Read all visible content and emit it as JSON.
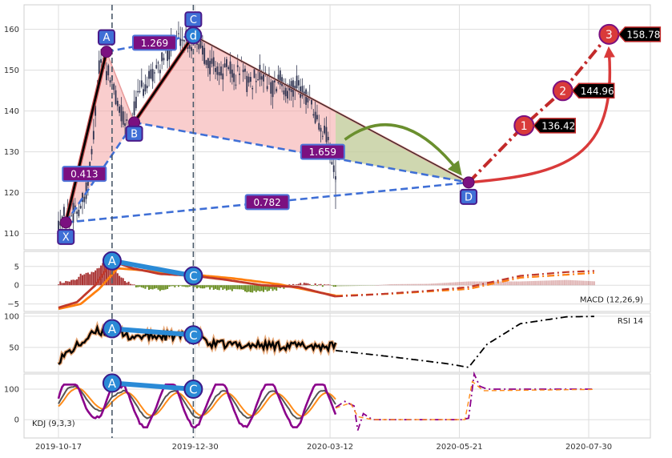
{
  "chart_data": {
    "type": "candlestick-pattern",
    "x_axis": {
      "tick_labels": [
        "2019-10-17",
        "2019-12-30",
        "2020-03-12",
        "2020-05-21",
        "2020-07-30"
      ],
      "tick_days": [
        0,
        74,
        147,
        217,
        287
      ]
    },
    "price_panel": {
      "ylim": [
        106,
        166
      ],
      "yticks": [
        110,
        120,
        130,
        140,
        150,
        160
      ],
      "price_series_days": [
        0,
        2,
        4,
        6,
        8,
        10,
        12,
        14,
        16,
        18,
        20,
        22,
        24,
        26,
        28,
        30,
        32,
        34,
        36,
        38,
        40,
        42,
        44,
        46,
        48,
        50,
        52,
        54,
        56,
        58,
        60,
        62,
        64,
        66,
        68,
        70,
        72,
        74,
        76,
        78,
        80,
        82,
        84,
        86,
        88,
        90,
        92,
        94,
        96,
        98,
        100,
        102,
        104,
        106,
        108,
        110,
        112,
        114,
        116,
        118,
        120,
        122,
        124,
        126,
        128,
        130,
        132,
        134,
        136,
        138,
        140,
        142,
        144,
        146,
        148,
        150
      ],
      "price_series_values": [
        113,
        114,
        115,
        114,
        115,
        116,
        117,
        118,
        122,
        130,
        140,
        150,
        153,
        150,
        148,
        145,
        142,
        139,
        138,
        137,
        139,
        142,
        144,
        146,
        147,
        148,
        150,
        151,
        152,
        154,
        155,
        156,
        157,
        158,
        158,
        157,
        156,
        158,
        157,
        155,
        153,
        151,
        152,
        150,
        149,
        150,
        151,
        149,
        148,
        150,
        151,
        147,
        146,
        149,
        148,
        150,
        148,
        147,
        145,
        146,
        148,
        146,
        144,
        145,
        147,
        146,
        145,
        143,
        142,
        140,
        138,
        137,
        135,
        133,
        128,
        122
      ],
      "harmonic_points": [
        {
          "label": "X",
          "day": 4,
          "price": 112.7
        },
        {
          "label": "A",
          "day": 26,
          "price": 154.5
        },
        {
          "label": "B",
          "day": 41,
          "price": 137.2
        },
        {
          "label": "C",
          "day": 73,
          "price": 158.5
        },
        {
          "label": "D",
          "day": 222,
          "price": 122.5
        }
      ],
      "c_marker_text": "d",
      "ratios": [
        {
          "label": "0.413",
          "day": 14,
          "price": 124.6
        },
        {
          "label": "1.269",
          "day": 52,
          "price": 156.7
        },
        {
          "label": "1.659",
          "day": 143,
          "price": 130.0
        },
        {
          "label": "0.782",
          "day": 113,
          "price": 117.7
        }
      ],
      "targets": [
        {
          "number": "1",
          "day": 252,
          "price": 136.42,
          "value_label": "136.42"
        },
        {
          "number": "2",
          "day": 273,
          "price": 144.96,
          "value_label": "144.96"
        },
        {
          "number": "3",
          "day": 298,
          "price": 158.78,
          "value_label": "158.78"
        }
      ],
      "vertical_markers_days": [
        29,
        73
      ]
    },
    "macd_panel": {
      "label": "MACD (12,26,9)",
      "ylim": [
        -7,
        9
      ],
      "yticks": [
        -5,
        0,
        5
      ],
      "divergence_points": [
        {
          "label": "A",
          "day": 29,
          "value": 6.5
        },
        {
          "label": "C",
          "day": 73,
          "value": 2.5
        }
      ]
    },
    "rsi_panel": {
      "label": "RSI 14",
      "ylim": [
        10,
        105
      ],
      "yticks": [
        50,
        100
      ],
      "divergence_points": [
        {
          "label": "A",
          "day": 29,
          "value": 80
        },
        {
          "label": "C",
          "day": 73,
          "value": 70
        }
      ]
    },
    "kdj_panel": {
      "label": "KDJ (9,3,3)",
      "ylim": [
        -60,
        150
      ],
      "yticks": [
        0,
        100
      ],
      "divergence_points": [
        {
          "label": "A",
          "day": 29,
          "value": 120
        },
        {
          "label": "C",
          "day": 73,
          "value": 100
        }
      ]
    },
    "colors": {
      "pattern_fill": "#f4a4a4",
      "projection_fill": "#b9dca0",
      "dashed_blue": "#3f6fd6",
      "label_purple": "#7b1080",
      "point_box": "#3f6fd6",
      "target_red": "#d93a3a",
      "divergence_blue": "#2a8ad6"
    }
  }
}
